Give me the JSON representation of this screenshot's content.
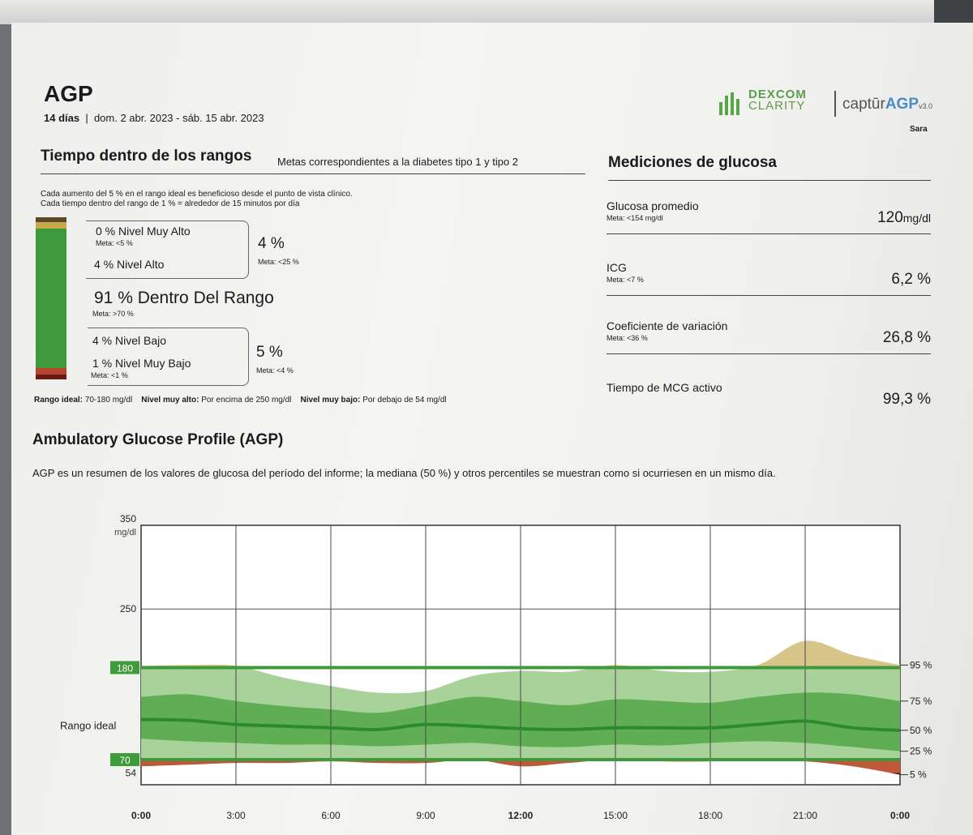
{
  "header": {
    "title": "AGP",
    "days": "14 días",
    "range": "dom. 2 abr. 2023 - sáb. 15 abr. 2023",
    "brand_dexcom_top": "DEXCOM",
    "brand_dexcom_bottom": "CLARITY",
    "brand_captur": "captūr",
    "brand_agp": "AGP",
    "brand_version": "v3.0",
    "user": "Sara"
  },
  "time_in_range": {
    "title": "Tiempo dentro de los rangos",
    "goals_text": "Metas correspondientes a la diabetes tipo 1 y tipo 2",
    "note_line1": "Cada aumento del 5 % en el rango ideal es beneficioso desde el punto de vista clínico.",
    "note_line2": "Cada tiempo dentro del rango de 1 % = alrededor de 15 minutos por día",
    "very_high": {
      "label": "0 % Nivel Muy Alto",
      "goal": "Meta: <5 %",
      "value": 0
    },
    "high": {
      "label": "4 % Nivel Alto",
      "value": 4
    },
    "high_combined": {
      "value": "4 %",
      "goal": "Meta: <25 %"
    },
    "in_range": {
      "label": "91 % Dentro Del Rango",
      "goal": "Meta: >70 %",
      "value": 91
    },
    "low": {
      "label": "4 % Nivel Bajo",
      "value": 4
    },
    "very_low": {
      "label": "1 % Nivel Muy Bajo",
      "goal": "Meta: <1 %",
      "value": 1
    },
    "low_combined": {
      "value": "5 %",
      "goal": "Meta: <4 %"
    },
    "colors": {
      "very_high": "#5a4a2a",
      "high": "#c9a84a",
      "in_range": "#3f9a3c",
      "low": "#b3452f",
      "very_low": "#6b1a14"
    },
    "footer": {
      "ideal_label": "Rango ideal:",
      "ideal_value": "70-180 mg/dl",
      "very_high_label": "Nivel muy alto:",
      "very_high_value": "Por encima de 250 mg/dl",
      "very_low_label": "Nivel muy bajo:",
      "very_low_value": "Por debajo de 54 mg/dl"
    }
  },
  "measurements": {
    "title": "Mediciones de glucosa",
    "rows": [
      {
        "name": "Glucosa promedio",
        "goal": "Meta: <154 mg/dl",
        "value": "120",
        "unit": "mg/dl"
      },
      {
        "name": "ICG",
        "goal": "Meta: <7 %",
        "value": "6,2 %",
        "unit": ""
      },
      {
        "name": "Coeficiente de variación",
        "goal": "Meta: <36 %",
        "value": "26,8 %",
        "unit": ""
      },
      {
        "name": "Tiempo de MCG activo",
        "goal": "",
        "value": "99,3 %",
        "unit": ""
      }
    ]
  },
  "agp": {
    "title": "Ambulatory Glucose Profile (AGP)",
    "description": "AGP es un resumen de los valores de glucosa del período del informe; la mediana (50 %) y otros percentiles se muestran como si ocurriesen en un mismo día."
  },
  "chart_data": {
    "type": "area",
    "ylim": [
      40,
      350
    ],
    "yunit": "mg/dl",
    "yticks": [
      {
        "value": 350,
        "label": "350"
      },
      {
        "value": 250,
        "label": "250"
      },
      {
        "value": 180,
        "label": "180"
      },
      {
        "value": 70,
        "label": "70"
      },
      {
        "value": 54,
        "label": "54"
      }
    ],
    "target_range": [
      70,
      180
    ],
    "target_label": "Rango ideal",
    "x_labels": [
      "0:00",
      "3:00",
      "6:00",
      "9:00",
      "12:00",
      "15:00",
      "18:00",
      "21:00",
      "0:00"
    ],
    "x_hours": [
      0,
      1.5,
      3,
      4.5,
      6,
      7.5,
      9,
      10.5,
      12,
      13.5,
      15,
      16.5,
      18,
      19.5,
      21,
      22.5,
      24
    ],
    "series": [
      {
        "name": "95 %",
        "values": [
          182,
          183,
          182,
          168,
          158,
          150,
          152,
          170,
          176,
          175,
          183,
          176,
          175,
          183,
          212,
          195,
          183
        ]
      },
      {
        "name": "75 %",
        "values": [
          145,
          148,
          140,
          134,
          130,
          126,
          135,
          145,
          140,
          135,
          142,
          140,
          138,
          145,
          150,
          148,
          140
        ]
      },
      {
        "name": "50 %",
        "values": [
          118,
          117,
          112,
          110,
          108,
          106,
          112,
          110,
          107,
          106,
          108,
          108,
          108,
          112,
          116,
          108,
          105
        ]
      },
      {
        "name": "25 %",
        "values": [
          95,
          92,
          90,
          88,
          88,
          86,
          88,
          90,
          86,
          85,
          88,
          87,
          90,
          92,
          90,
          85,
          80
        ]
      },
      {
        "name": "5 %",
        "values": [
          62,
          64,
          66,
          66,
          68,
          66,
          66,
          70,
          62,
          66,
          70,
          68,
          68,
          70,
          68,
          62,
          52
        ]
      }
    ],
    "percentile_labels": [
      "95 %",
      "75 %",
      "50 %",
      "25 %",
      "5 %"
    ],
    "colors": {
      "target_fill": "#3f9a3c",
      "outer_band": "#a8d29a",
      "inner_band": "#5fae54",
      "median": "#2b8a2c",
      "above_range": "#d8c58a",
      "below_range": "#c0573a",
      "very_low": "#4a1410"
    }
  }
}
